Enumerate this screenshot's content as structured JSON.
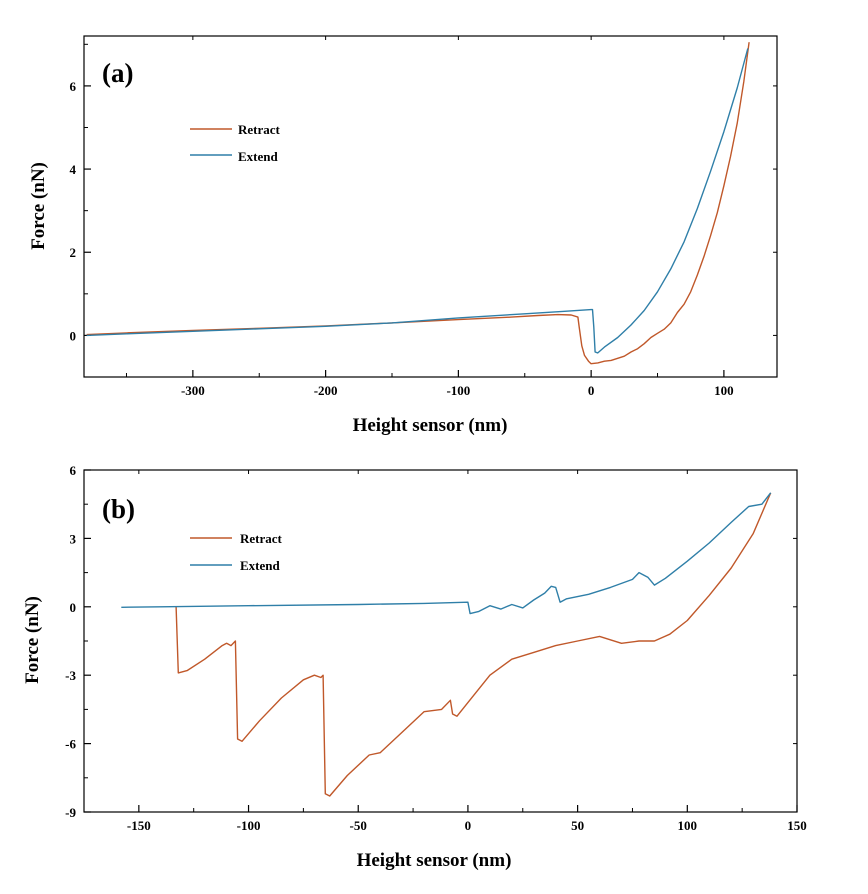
{
  "figure": {
    "colors": {
      "retract": "#c0582a",
      "extend": "#2f7fa8",
      "axis": "#000000",
      "background": "#ffffff"
    }
  },
  "chart_data": [
    {
      "type": "line",
      "panel_label": "(a)",
      "xlabel": "Height sensor (nm)",
      "ylabel": "Force (nN)",
      "xlim": [
        -382,
        140
      ],
      "ylim": [
        -1,
        7.2
      ],
      "x_ticks": [
        -300,
        -200,
        -100,
        0,
        100
      ],
      "x_tick_labels": [
        "-300",
        "-200",
        "-100",
        "0",
        "100"
      ],
      "y_ticks": [
        0,
        2,
        4,
        6
      ],
      "y_tick_labels": [
        "0",
        "2",
        "4",
        "6"
      ],
      "legend": {
        "position": "upper-left",
        "entries": [
          "Retract",
          "Extend"
        ]
      },
      "grid": false,
      "series": [
        {
          "name": "Retract",
          "color": "#c0582a",
          "points": [
            [
              -380,
              0.02
            ],
            [
              -350,
              0.06
            ],
            [
              -300,
              0.12
            ],
            [
              -250,
              0.17
            ],
            [
              -200,
              0.23
            ],
            [
              -150,
              0.3
            ],
            [
              -100,
              0.38
            ],
            [
              -60,
              0.44
            ],
            [
              -40,
              0.48
            ],
            [
              -25,
              0.5
            ],
            [
              -15,
              0.49
            ],
            [
              -10,
              0.44
            ],
            [
              -9,
              0.2
            ],
            [
              -7,
              -0.25
            ],
            [
              -5,
              -0.48
            ],
            [
              -2,
              -0.62
            ],
            [
              0,
              -0.68
            ],
            [
              5,
              -0.66
            ],
            [
              10,
              -0.62
            ],
            [
              15,
              -0.6
            ],
            [
              20,
              -0.55
            ],
            [
              25,
              -0.5
            ],
            [
              30,
              -0.4
            ],
            [
              35,
              -0.32
            ],
            [
              40,
              -0.2
            ],
            [
              45,
              -0.05
            ],
            [
              50,
              0.05
            ],
            [
              55,
              0.15
            ],
            [
              60,
              0.3
            ],
            [
              65,
              0.55
            ],
            [
              70,
              0.75
            ],
            [
              75,
              1.05
            ],
            [
              80,
              1.45
            ],
            [
              85,
              1.9
            ],
            [
              90,
              2.4
            ],
            [
              95,
              2.95
            ],
            [
              100,
              3.6
            ],
            [
              105,
              4.3
            ],
            [
              110,
              5.1
            ],
            [
              115,
              6.1
            ],
            [
              119,
              7.05
            ]
          ]
        },
        {
          "name": "Extend",
          "color": "#2f7fa8",
          "points": [
            [
              -380,
              0.0
            ],
            [
              -350,
              0.04
            ],
            [
              -300,
              0.1
            ],
            [
              -250,
              0.16
            ],
            [
              -200,
              0.22
            ],
            [
              -150,
              0.3
            ],
            [
              -100,
              0.42
            ],
            [
              -50,
              0.52
            ],
            [
              -20,
              0.58
            ],
            [
              0,
              0.62
            ],
            [
              1,
              0.62
            ],
            [
              2,
              0.2
            ],
            [
              3,
              -0.4
            ],
            [
              5,
              -0.42
            ],
            [
              10,
              -0.28
            ],
            [
              20,
              -0.05
            ],
            [
              30,
              0.25
            ],
            [
              40,
              0.6
            ],
            [
              50,
              1.05
            ],
            [
              60,
              1.6
            ],
            [
              70,
              2.25
            ],
            [
              80,
              3.05
            ],
            [
              90,
              3.95
            ],
            [
              100,
              4.9
            ],
            [
              110,
              5.95
            ],
            [
              118,
              6.9
            ]
          ]
        }
      ]
    },
    {
      "type": "line",
      "panel_label": "(b)",
      "xlabel": "Height sensor (nm)",
      "ylabel": "Force (nN)",
      "xlim": [
        -175,
        150
      ],
      "ylim": [
        -9,
        6
      ],
      "x_ticks": [
        -150,
        -100,
        -50,
        0,
        50,
        100,
        150
      ],
      "x_tick_labels": [
        "-150",
        "-100",
        "-50",
        "0",
        "50",
        "100",
        "150"
      ],
      "y_ticks": [
        -9,
        -6,
        -3,
        0,
        3,
        6
      ],
      "y_tick_labels": [
        "-9",
        "-6",
        "-3",
        "0",
        "3",
        "6"
      ],
      "legend": {
        "position": "upper-left",
        "entries": [
          "Retract",
          "Extend"
        ]
      },
      "grid": false,
      "series": [
        {
          "name": "Retract",
          "color": "#c0582a",
          "points": [
            [
              -133,
              0.0
            ],
            [
              -132,
              -2.9
            ],
            [
              -128,
              -2.8
            ],
            [
              -120,
              -2.3
            ],
            [
              -112,
              -1.7
            ],
            [
              -110,
              -1.6
            ],
            [
              -108,
              -1.7
            ],
            [
              -106,
              -1.5
            ],
            [
              -105,
              -5.8
            ],
            [
              -103,
              -5.9
            ],
            [
              -95,
              -5.0
            ],
            [
              -85,
              -4.0
            ],
            [
              -75,
              -3.2
            ],
            [
              -70,
              -3.0
            ],
            [
              -67,
              -3.1
            ],
            [
              -66,
              -3.0
            ],
            [
              -65,
              -8.2
            ],
            [
              -63,
              -8.3
            ],
            [
              -55,
              -7.4
            ],
            [
              -45,
              -6.5
            ],
            [
              -40,
              -6.4
            ],
            [
              -30,
              -5.5
            ],
            [
              -20,
              -4.6
            ],
            [
              -12,
              -4.5
            ],
            [
              -8,
              -4.1
            ],
            [
              -7,
              -4.7
            ],
            [
              -5,
              -4.8
            ],
            [
              0,
              -4.2
            ],
            [
              10,
              -3.0
            ],
            [
              20,
              -2.3
            ],
            [
              30,
              -2.0
            ],
            [
              40,
              -1.7
            ],
            [
              50,
              -1.5
            ],
            [
              60,
              -1.3
            ],
            [
              70,
              -1.6
            ],
            [
              78,
              -1.5
            ],
            [
              85,
              -1.5
            ],
            [
              92,
              -1.2
            ],
            [
              100,
              -0.6
            ],
            [
              110,
              0.5
            ],
            [
              120,
              1.7
            ],
            [
              130,
              3.2
            ],
            [
              138,
              5.0
            ]
          ]
        },
        {
          "name": "Extend",
          "color": "#2f7fa8",
          "points": [
            [
              -158,
              -0.02
            ],
            [
              -140,
              0.0
            ],
            [
              -100,
              0.05
            ],
            [
              -50,
              0.1
            ],
            [
              -20,
              0.15
            ],
            [
              0,
              0.2
            ],
            [
              1,
              -0.3
            ],
            [
              5,
              -0.2
            ],
            [
              10,
              0.05
            ],
            [
              15,
              -0.1
            ],
            [
              20,
              0.1
            ],
            [
              25,
              -0.05
            ],
            [
              30,
              0.3
            ],
            [
              35,
              0.6
            ],
            [
              38,
              0.9
            ],
            [
              40,
              0.85
            ],
            [
              42,
              0.2
            ],
            [
              45,
              0.35
            ],
            [
              55,
              0.55
            ],
            [
              65,
              0.85
            ],
            [
              75,
              1.2
            ],
            [
              78,
              1.5
            ],
            [
              82,
              1.3
            ],
            [
              85,
              0.95
            ],
            [
              90,
              1.25
            ],
            [
              100,
              2.0
            ],
            [
              110,
              2.8
            ],
            [
              120,
              3.7
            ],
            [
              128,
              4.4
            ],
            [
              134,
              4.5
            ],
            [
              138,
              5.0
            ]
          ]
        }
      ]
    }
  ]
}
